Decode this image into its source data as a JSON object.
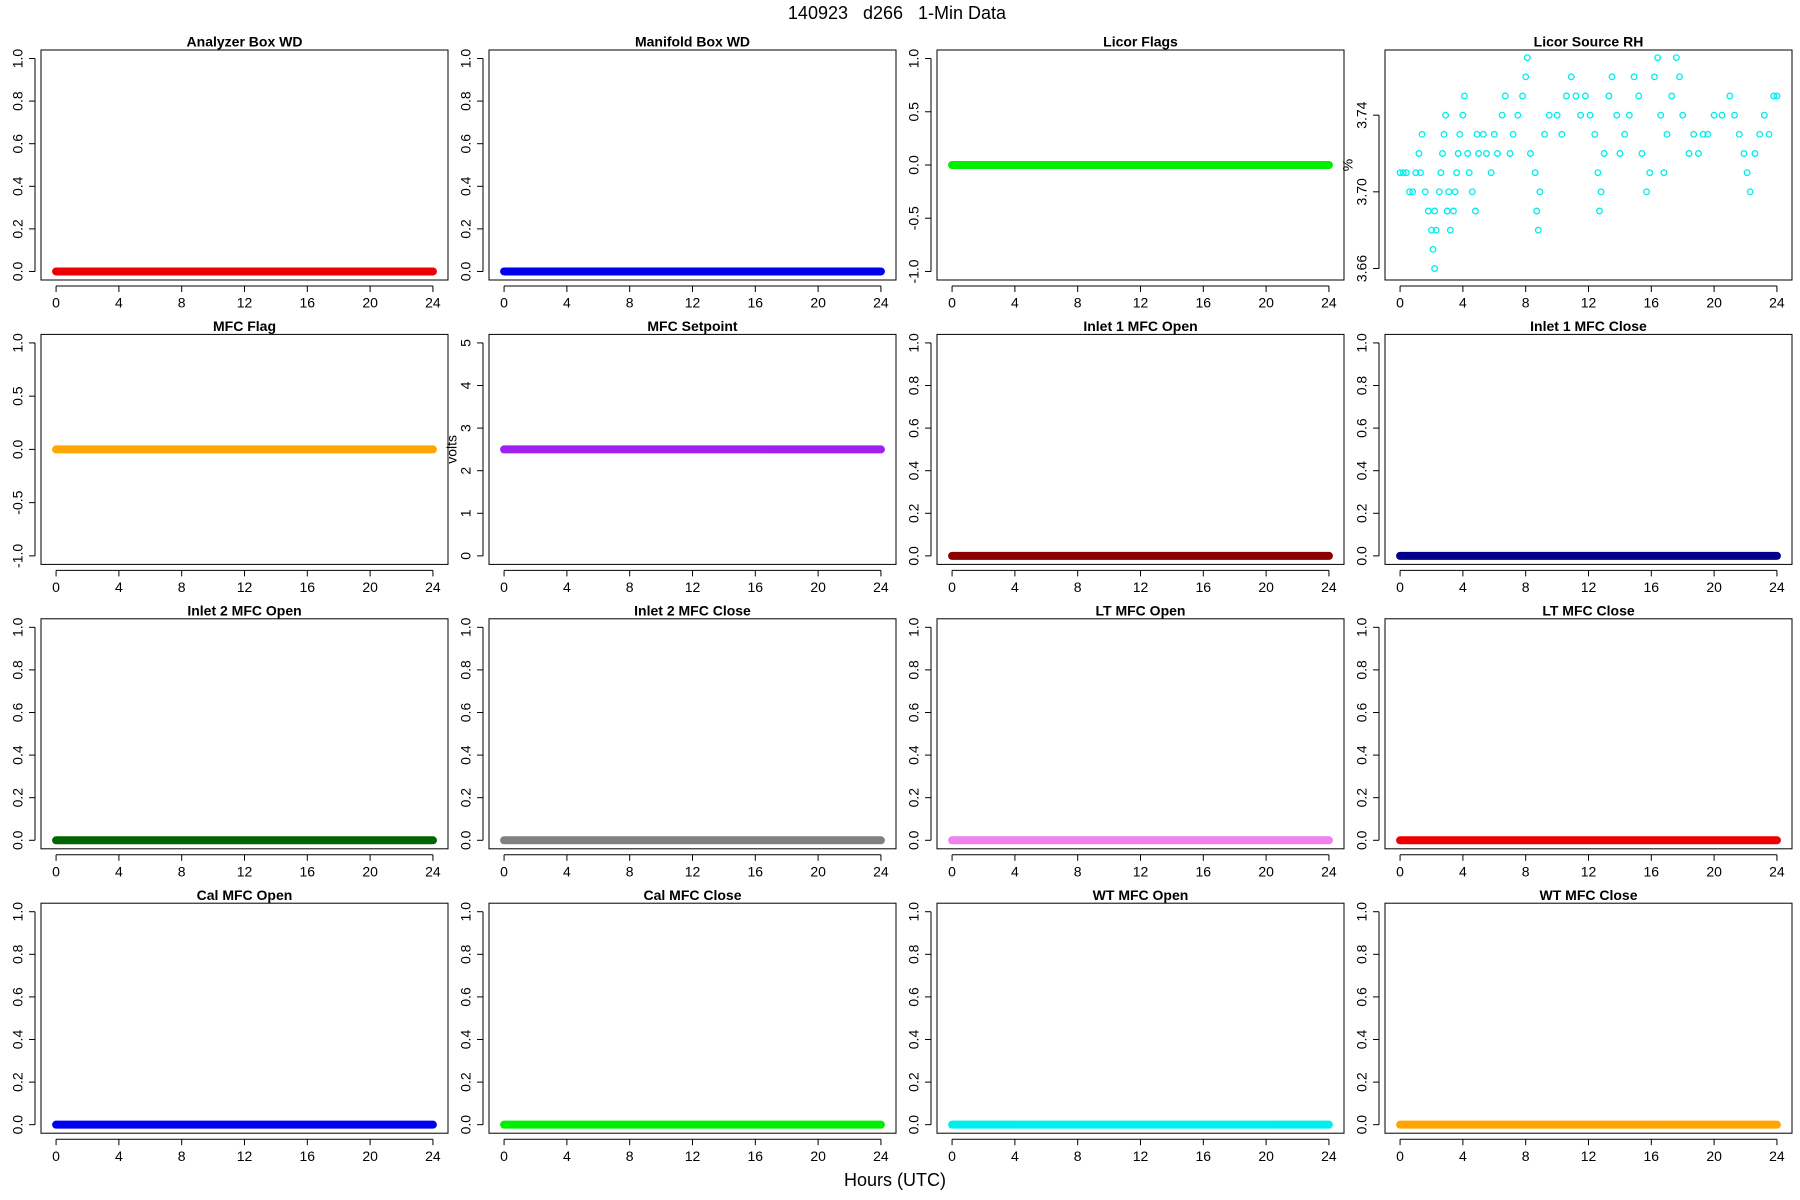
{
  "title": "140923   d266   1-Min Data",
  "xlabel": "Hours (UTC)",
  "chart_data": [
    {
      "type": "line",
      "title": "Analyzer Box WD",
      "x": [
        0,
        24
      ],
      "values": [
        0,
        0
      ],
      "color": "#ee0000",
      "xlim": [
        -0.96,
        24.96
      ],
      "xticks": [
        0,
        4,
        8,
        12,
        16,
        20,
        24
      ],
      "ylim": [
        -0.04,
        1.04
      ],
      "yticks": [
        {
          "value": 0,
          "label": "0.0"
        },
        0.2,
        0.4,
        0.6,
        0.8,
        {
          "value": 1,
          "label": "1.0"
        }
      ]
    },
    {
      "type": "line",
      "title": "Manifold Box WD",
      "x": [
        0,
        24
      ],
      "values": [
        0,
        0
      ],
      "color": "#0000ee",
      "xlim": [
        -0.96,
        24.96
      ],
      "xticks": [
        0,
        4,
        8,
        12,
        16,
        20,
        24
      ],
      "ylim": [
        -0.04,
        1.04
      ],
      "yticks": [
        {
          "value": 0,
          "label": "0.0"
        },
        0.2,
        0.4,
        0.6,
        0.8,
        {
          "value": 1,
          "label": "1.0"
        }
      ]
    },
    {
      "type": "line",
      "title": "Licor Flags",
      "x": [
        0,
        24
      ],
      "values": [
        0,
        0
      ],
      "color": "#00ee00",
      "xlim": [
        -0.96,
        24.96
      ],
      "xticks": [
        0,
        4,
        8,
        12,
        16,
        20,
        24
      ],
      "ylim": [
        -1.08,
        1.08
      ],
      "yticks": [
        {
          "value": -1,
          "label": "-1.0"
        },
        -0.5,
        {
          "value": 0,
          "label": "0.0"
        },
        0.5,
        {
          "value": 1,
          "label": "1.0"
        }
      ]
    },
    {
      "type": "scatter",
      "title": "Licor Source RH",
      "ylabel": "%",
      "color": "#00eeee",
      "xlim": [
        -0.96,
        24.96
      ],
      "xticks": [
        0,
        4,
        8,
        12,
        16,
        20,
        24
      ],
      "ylim": [
        3.654,
        3.774
      ],
      "yticks": [
        3.66,
        {
          "value": 3.7,
          "label": "3.70"
        },
        3.74
      ],
      "x": [
        0,
        0.2,
        0.4,
        0.6,
        0.8,
        1.0,
        1.2,
        1.3,
        1.4,
        1.6,
        1.8,
        2.0,
        2.1,
        2.2,
        2.3,
        2.2,
        2.5,
        2.6,
        2.7,
        2.8,
        2.9,
        3.0,
        3.1,
        3.2,
        3.4,
        3.5,
        3.6,
        3.7,
        3.8,
        4.0,
        4.1,
        4.3,
        4.4,
        4.6,
        4.8,
        4.9,
        5.0,
        5.3,
        5.5,
        5.8,
        6.0,
        6.2,
        6.5,
        6.7,
        7.0,
        7.2,
        7.5,
        7.8,
        8.0,
        8.1,
        8.3,
        8.6,
        8.7,
        8.8,
        8.9,
        9.2,
        9.5,
        10.0,
        10.3,
        10.6,
        10.9,
        11.2,
        11.5,
        11.8,
        12.1,
        12.4,
        12.6,
        12.7,
        12.8,
        13.0,
        13.3,
        13.5,
        13.8,
        14.0,
        14.3,
        14.6,
        14.9,
        15.2,
        15.4,
        15.7,
        15.9,
        16.2,
        16.4,
        16.6,
        16.8,
        17.0,
        17.3,
        17.6,
        17.8,
        18.0,
        18.4,
        18.7,
        19.0,
        19.3,
        19.6,
        20.0,
        20.5,
        21.0,
        21.3,
        21.6,
        21.9,
        22.1,
        22.3,
        22.6,
        22.9,
        23.2,
        23.5,
        23.8,
        24.0
      ],
      "values": [
        3.71,
        3.71,
        3.71,
        3.7,
        3.7,
        3.71,
        3.72,
        3.71,
        3.73,
        3.7,
        3.69,
        3.68,
        3.67,
        3.66,
        3.68,
        3.69,
        3.7,
        3.71,
        3.72,
        3.73,
        3.74,
        3.69,
        3.7,
        3.68,
        3.69,
        3.7,
        3.71,
        3.72,
        3.73,
        3.74,
        3.75,
        3.72,
        3.71,
        3.7,
        3.69,
        3.73,
        3.72,
        3.73,
        3.72,
        3.71,
        3.73,
        3.72,
        3.74,
        3.75,
        3.72,
        3.73,
        3.74,
        3.75,
        3.76,
        3.77,
        3.72,
        3.71,
        3.69,
        3.68,
        3.7,
        3.73,
        3.74,
        3.74,
        3.73,
        3.75,
        3.76,
        3.75,
        3.74,
        3.75,
        3.74,
        3.73,
        3.71,
        3.69,
        3.7,
        3.72,
        3.75,
        3.76,
        3.74,
        3.72,
        3.73,
        3.74,
        3.76,
        3.75,
        3.72,
        3.7,
        3.71,
        3.76,
        3.77,
        3.74,
        3.71,
        3.73,
        3.75,
        3.77,
        3.76,
        3.74,
        3.72,
        3.73,
        3.72,
        3.73,
        3.73,
        3.74,
        3.74,
        3.75,
        3.74,
        3.73,
        3.72,
        3.71,
        3.7,
        3.72,
        3.73,
        3.74,
        3.73,
        3.75,
        3.75
      ]
    },
    {
      "type": "line",
      "title": "MFC Flag",
      "x": [
        0,
        24
      ],
      "values": [
        0,
        0
      ],
      "color": "#ffa500",
      "xlim": [
        -0.96,
        24.96
      ],
      "xticks": [
        0,
        4,
        8,
        12,
        16,
        20,
        24
      ],
      "ylim": [
        -1.08,
        1.08
      ],
      "yticks": [
        {
          "value": -1,
          "label": "-1.0"
        },
        -0.5,
        {
          "value": 0,
          "label": "0.0"
        },
        0.5,
        {
          "value": 1,
          "label": "1.0"
        }
      ]
    },
    {
      "type": "line",
      "title": "MFC Setpoint",
      "ylabel": "volts",
      "x": [
        0,
        24
      ],
      "values": [
        2.5,
        2.5
      ],
      "color": "#a020f0",
      "xlim": [
        -0.96,
        24.96
      ],
      "xticks": [
        0,
        4,
        8,
        12,
        16,
        20,
        24
      ],
      "ylim": [
        -0.2,
        5.2
      ],
      "yticks": [
        0,
        1,
        2,
        3,
        4,
        5
      ]
    },
    {
      "type": "line",
      "title": "Inlet 1 MFC Open",
      "x": [
        0,
        24
      ],
      "values": [
        0,
        0
      ],
      "color": "#8b0000",
      "xlim": [
        -0.96,
        24.96
      ],
      "xticks": [
        0,
        4,
        8,
        12,
        16,
        20,
        24
      ],
      "ylim": [
        -0.04,
        1.04
      ],
      "yticks": [
        {
          "value": 0,
          "label": "0.0"
        },
        0.2,
        0.4,
        0.6,
        0.8,
        {
          "value": 1,
          "label": "1.0"
        }
      ]
    },
    {
      "type": "line",
      "title": "Inlet 1 MFC Close",
      "x": [
        0,
        24
      ],
      "values": [
        0,
        0
      ],
      "color": "#00008b",
      "xlim": [
        -0.96,
        24.96
      ],
      "xticks": [
        0,
        4,
        8,
        12,
        16,
        20,
        24
      ],
      "ylim": [
        -0.04,
        1.04
      ],
      "yticks": [
        {
          "value": 0,
          "label": "0.0"
        },
        0.2,
        0.4,
        0.6,
        0.8,
        {
          "value": 1,
          "label": "1.0"
        }
      ]
    },
    {
      "type": "line",
      "title": "Inlet 2 MFC Open",
      "x": [
        0,
        24
      ],
      "values": [
        0,
        0
      ],
      "color": "#006400",
      "xlim": [
        -0.96,
        24.96
      ],
      "xticks": [
        0,
        4,
        8,
        12,
        16,
        20,
        24
      ],
      "ylim": [
        -0.04,
        1.04
      ],
      "yticks": [
        {
          "value": 0,
          "label": "0.0"
        },
        0.2,
        0.4,
        0.6,
        0.8,
        {
          "value": 1,
          "label": "1.0"
        }
      ]
    },
    {
      "type": "line",
      "title": "Inlet 2 MFC Close",
      "x": [
        0,
        24
      ],
      "values": [
        0,
        0
      ],
      "color": "#808080",
      "xlim": [
        -0.96,
        24.96
      ],
      "xticks": [
        0,
        4,
        8,
        12,
        16,
        20,
        24
      ],
      "ylim": [
        -0.04,
        1.04
      ],
      "yticks": [
        {
          "value": 0,
          "label": "0.0"
        },
        0.2,
        0.4,
        0.6,
        0.8,
        {
          "value": 1,
          "label": "1.0"
        }
      ]
    },
    {
      "type": "line",
      "title": "LT MFC Open",
      "x": [
        0,
        24
      ],
      "values": [
        0,
        0
      ],
      "color": "#ee82ee",
      "xlim": [
        -0.96,
        24.96
      ],
      "xticks": [
        0,
        4,
        8,
        12,
        16,
        20,
        24
      ],
      "ylim": [
        -0.04,
        1.04
      ],
      "yticks": [
        {
          "value": 0,
          "label": "0.0"
        },
        0.2,
        0.4,
        0.6,
        0.8,
        {
          "value": 1,
          "label": "1.0"
        }
      ]
    },
    {
      "type": "line",
      "title": "LT MFC Close",
      "x": [
        0,
        24
      ],
      "values": [
        0,
        0
      ],
      "color": "#ee0000",
      "xlim": [
        -0.96,
        24.96
      ],
      "xticks": [
        0,
        4,
        8,
        12,
        16,
        20,
        24
      ],
      "ylim": [
        -0.04,
        1.04
      ],
      "yticks": [
        {
          "value": 0,
          "label": "0.0"
        },
        0.2,
        0.4,
        0.6,
        0.8,
        {
          "value": 1,
          "label": "1.0"
        }
      ]
    },
    {
      "type": "line",
      "title": "Cal MFC Open",
      "x": [
        0,
        24
      ],
      "values": [
        0,
        0
      ],
      "color": "#0000ee",
      "xlim": [
        -0.96,
        24.96
      ],
      "xticks": [
        0,
        4,
        8,
        12,
        16,
        20,
        24
      ],
      "ylim": [
        -0.04,
        1.04
      ],
      "yticks": [
        {
          "value": 0,
          "label": "0.0"
        },
        0.2,
        0.4,
        0.6,
        0.8,
        {
          "value": 1,
          "label": "1.0"
        }
      ]
    },
    {
      "type": "line",
      "title": "Cal MFC Close",
      "x": [
        0,
        24
      ],
      "values": [
        0,
        0
      ],
      "color": "#00ee00",
      "xlim": [
        -0.96,
        24.96
      ],
      "xticks": [
        0,
        4,
        8,
        12,
        16,
        20,
        24
      ],
      "ylim": [
        -0.04,
        1.04
      ],
      "yticks": [
        {
          "value": 0,
          "label": "0.0"
        },
        0.2,
        0.4,
        0.6,
        0.8,
        {
          "value": 1,
          "label": "1.0"
        }
      ]
    },
    {
      "type": "line",
      "title": "WT MFC Open",
      "x": [
        0,
        24
      ],
      "values": [
        0,
        0
      ],
      "color": "#00eeee",
      "xlim": [
        -0.96,
        24.96
      ],
      "xticks": [
        0,
        4,
        8,
        12,
        16,
        20,
        24
      ],
      "ylim": [
        -0.04,
        1.04
      ],
      "yticks": [
        {
          "value": 0,
          "label": "0.0"
        },
        0.2,
        0.4,
        0.6,
        0.8,
        {
          "value": 1,
          "label": "1.0"
        }
      ]
    },
    {
      "type": "line",
      "title": "WT MFC Close",
      "x": [
        0,
        24
      ],
      "values": [
        0,
        0
      ],
      "color": "#ffa500",
      "xlim": [
        -0.96,
        24.96
      ],
      "xticks": [
        0,
        4,
        8,
        12,
        16,
        20,
        24
      ],
      "ylim": [
        -0.04,
        1.04
      ],
      "yticks": [
        {
          "value": 0,
          "label": "0.0"
        },
        0.2,
        0.4,
        0.6,
        0.8,
        {
          "value": 1,
          "label": "1.0"
        }
      ]
    }
  ]
}
